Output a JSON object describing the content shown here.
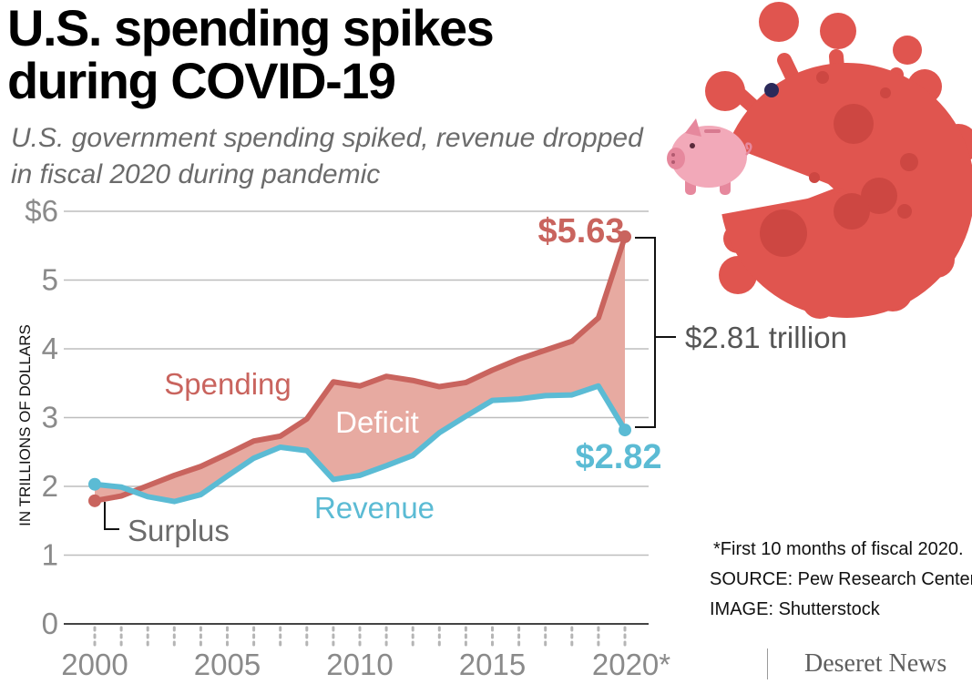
{
  "title_line1": "U.S. spending spikes",
  "title_line2": "during COVID-19",
  "subtitle_line1": "U.S. government spending spiked, revenue dropped",
  "subtitle_line2": "in fiscal 2020 during pandemic",
  "footnotes": {
    "note": "*First 10 months of fiscal 2020.",
    "source": "SOURCE: Pew Research Center",
    "image": "IMAGE: Shutterstock"
  },
  "brand": "Deseret News",
  "colors": {
    "spending": "#c9645e",
    "revenue": "#5bbbd4",
    "deficit_fill": "#e7aaa1",
    "virus": "#e0554f",
    "virus_spots": "#cd4742",
    "pig": "#f2a9b9"
  },
  "illustration": {
    "virus": "coronavirus-illustration",
    "pig": "piggy-bank-illustration"
  },
  "chart_data": {
    "type": "area",
    "ylabel": "IN TRILLIONS OF DOLLARS",
    "ylim": [
      0,
      6
    ],
    "xlim": [
      2000,
      2020
    ],
    "y_ticks": [
      "0",
      "1",
      "2",
      "3",
      "4",
      "5",
      "$6"
    ],
    "x_ticks": [
      "2000",
      "2005",
      "2010",
      "2015",
      "2020*"
    ],
    "grid": true,
    "x": [
      2000,
      2001,
      2002,
      2003,
      2004,
      2005,
      2006,
      2007,
      2008,
      2009,
      2010,
      2011,
      2012,
      2013,
      2014,
      2015,
      2016,
      2017,
      2018,
      2019,
      2020
    ],
    "series": [
      {
        "name": "Spending",
        "values": [
          1.79,
          1.86,
          2.01,
          2.16,
          2.29,
          2.47,
          2.66,
          2.73,
          2.98,
          3.52,
          3.46,
          3.6,
          3.54,
          3.45,
          3.51,
          3.69,
          3.85,
          3.98,
          4.11,
          4.45,
          5.63
        ]
      },
      {
        "name": "Revenue",
        "values": [
          2.03,
          1.99,
          1.85,
          1.78,
          1.88,
          2.15,
          2.41,
          2.57,
          2.52,
          2.1,
          2.16,
          2.3,
          2.45,
          2.78,
          3.02,
          3.25,
          3.27,
          3.32,
          3.33,
          3.46,
          2.82
        ]
      }
    ],
    "area_labels": {
      "spending": "Spending",
      "revenue": "Revenue",
      "deficit": "Deficit",
      "surplus": "Surplus"
    },
    "annotations": {
      "spending_end": "$5.63",
      "revenue_end": "$2.82",
      "gap": "$2.81 trillion"
    }
  }
}
